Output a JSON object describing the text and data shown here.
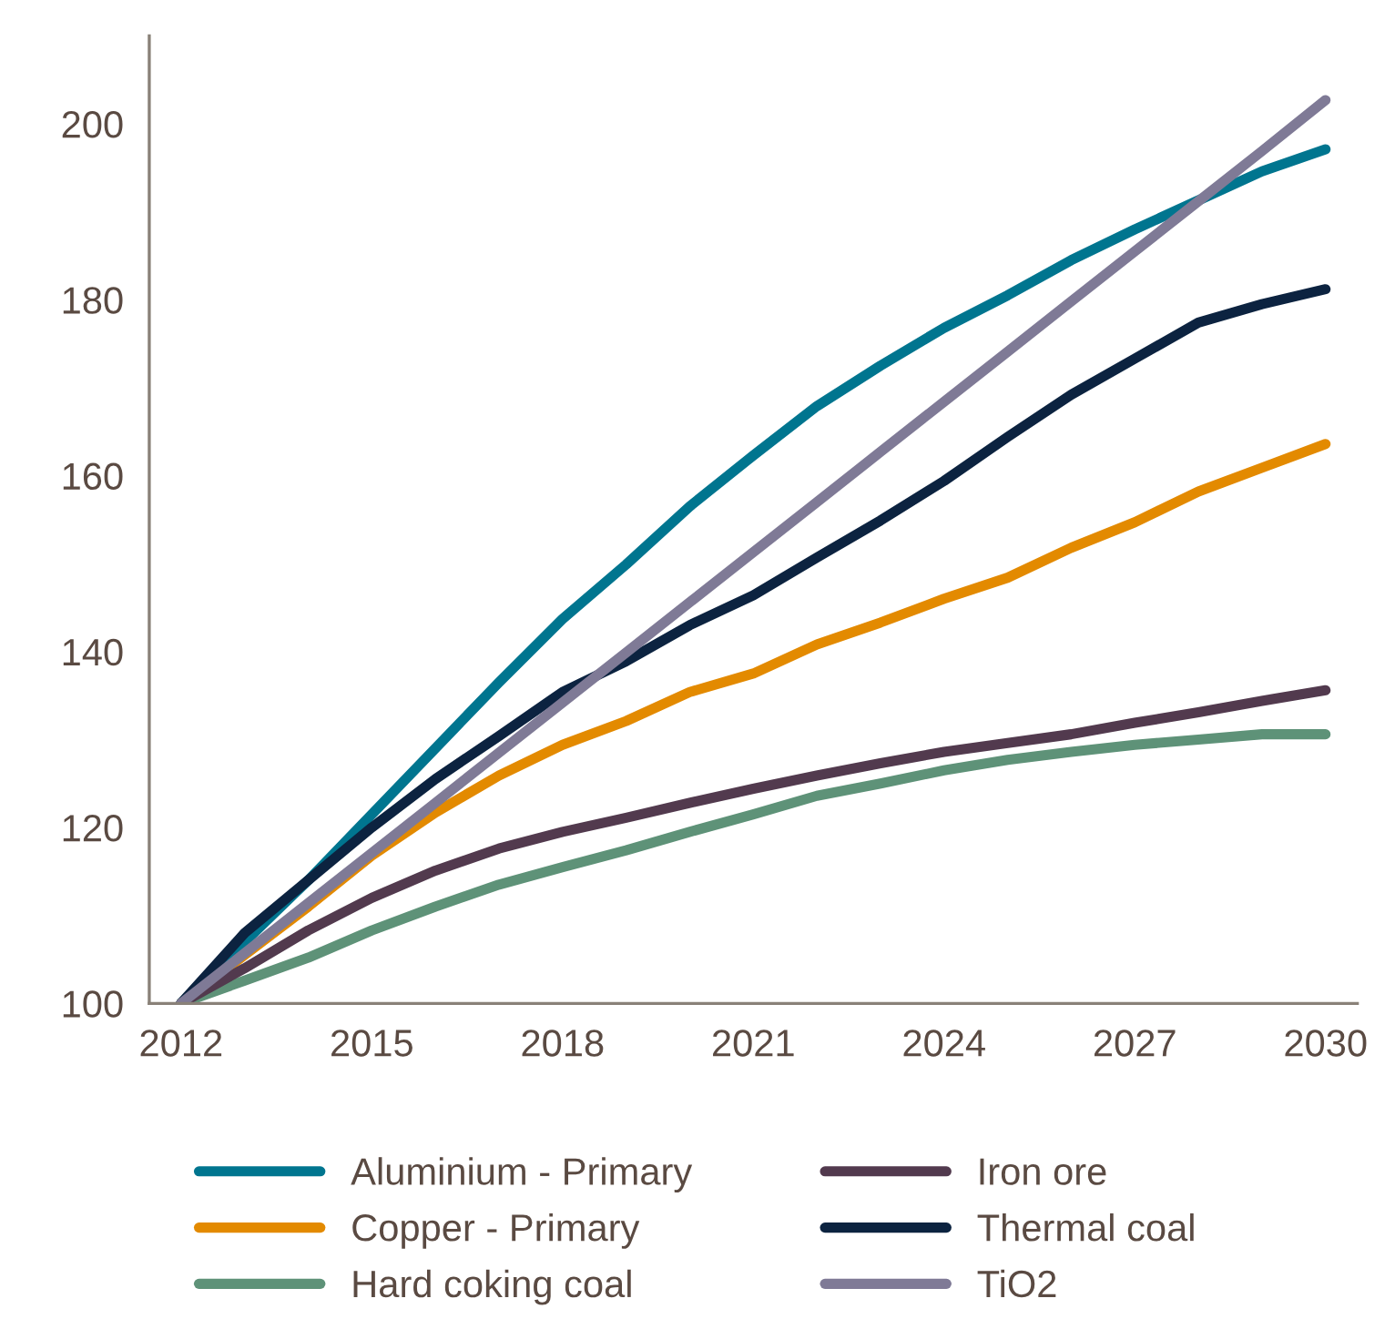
{
  "chart_data": {
    "type": "line",
    "categories": [
      "2012",
      null,
      null,
      "2015",
      null,
      null,
      "2018",
      null,
      null,
      "2021",
      null,
      null,
      "2024",
      null,
      null,
      "2027",
      null,
      null,
      "2030"
    ],
    "series": [
      {
        "name": "Aluminium - Primary",
        "color": "#00758f",
        "values": [
          100,
          107,
          114,
          121.5,
          129,
          136.5,
          143.7,
          149.9,
          156.5,
          162.3,
          167.9,
          172.5,
          176.8,
          180.5,
          184.5,
          188,
          191.3,
          194.6,
          197.1
        ]
      },
      {
        "name": "Copper - Primary",
        "color": "#e38a00",
        "values": [
          100,
          105.5,
          111,
          116.8,
          121.7,
          125.9,
          129.4,
          132.1,
          135.4,
          137.5,
          140.8,
          143.3,
          146,
          148.4,
          151.8,
          154.7,
          158.2,
          160.9,
          163.6
        ]
      },
      {
        "name": "Hard coking coal",
        "color": "#5e9278",
        "values": [
          100,
          102.6,
          105.2,
          108.3,
          111,
          113.5,
          115.5,
          117.4,
          119.5,
          121.5,
          123.6,
          125,
          126.5,
          127.7,
          128.6,
          129.4,
          130,
          130.6,
          130.6
        ]
      },
      {
        "name": "Iron ore",
        "color": "#523a4e",
        "values": [
          100,
          104,
          108.3,
          112,
          115.1,
          117.6,
          119.5,
          121.1,
          122.8,
          124.4,
          125.9,
          127.3,
          128.6,
          129.6,
          130.6,
          131.9,
          133.1,
          134.4,
          135.6
        ]
      },
      {
        "name": "Thermal coal",
        "color": "#0c2340",
        "values": [
          100,
          108,
          114,
          120,
          125.5,
          130.4,
          135.4,
          138.9,
          143,
          146.4,
          150.7,
          154.9,
          159.4,
          164.4,
          169.2,
          173.3,
          177.4,
          179.5,
          181.2
        ]
      },
      {
        "name": "TiO2",
        "color": "#7f7a96",
        "values": [
          100,
          105.7,
          111.4,
          117.1,
          122.8,
          128.5,
          134.2,
          139.9,
          145.6,
          151.3,
          157,
          162.7,
          168.4,
          174.1,
          179.8,
          185.5,
          191.2,
          196.9,
          202.7
        ]
      }
    ],
    "ylim": [
      100,
      210
    ],
    "yticks": [
      100,
      120,
      140,
      160,
      180,
      200
    ],
    "grid": false,
    "legend": "bottom",
    "marker": "none",
    "line_style": "solid"
  }
}
